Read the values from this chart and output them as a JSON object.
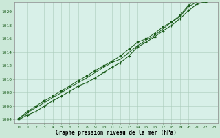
{
  "title": "Graphe pression niveau de la mer (hPa)",
  "background_color": "#cbe8d8",
  "plot_bg_color": "#d8f0e8",
  "grid_color": "#aaccbb",
  "line_color": "#1a5c1a",
  "xlim": [
    -0.5,
    23.5
  ],
  "ylim": [
    1003.5,
    1021.5
  ],
  "yticks": [
    1004,
    1006,
    1008,
    1010,
    1012,
    1014,
    1016,
    1018,
    1020
  ],
  "xticks": [
    0,
    1,
    2,
    3,
    4,
    5,
    6,
    7,
    8,
    9,
    10,
    11,
    12,
    13,
    14,
    15,
    16,
    17,
    18,
    19,
    20,
    21,
    22,
    23
  ],
  "series1_x": [
    0,
    1,
    2,
    3,
    4,
    5,
    6,
    7,
    8,
    9,
    10,
    11,
    12,
    13,
    14,
    15,
    16,
    17,
    18,
    19,
    20,
    21,
    22,
    23
  ],
  "series1_y": [
    1004.0,
    1004.7,
    1005.2,
    1006.0,
    1006.8,
    1007.5,
    1008.2,
    1009.0,
    1009.5,
    1010.2,
    1011.0,
    1011.8,
    1012.5,
    1013.5,
    1014.8,
    1015.5,
    1016.3,
    1017.2,
    1018.0,
    1019.0,
    1020.2,
    1021.2,
    1021.5,
    1021.8
  ],
  "series2_x": [
    0,
    1,
    2,
    3,
    4,
    5,
    6,
    7,
    8,
    9,
    10,
    11,
    12,
    13,
    14,
    15,
    16,
    17,
    18,
    19,
    20,
    21,
    22,
    23
  ],
  "series2_y": [
    1004.1,
    1005.0,
    1005.8,
    1006.5,
    1007.3,
    1008.0,
    1008.8,
    1009.5,
    1010.2,
    1011.0,
    1011.8,
    1012.5,
    1013.0,
    1014.0,
    1015.0,
    1015.8,
    1016.5,
    1017.5,
    1018.5,
    1019.3,
    1020.8,
    1021.5,
    1021.8,
    1022.0
  ],
  "series3_x": [
    0,
    1,
    2,
    3,
    4,
    5,
    6,
    7,
    8,
    9,
    10,
    11,
    12,
    13,
    14,
    15,
    16,
    17,
    18,
    19,
    20,
    21,
    22,
    23
  ],
  "series3_y": [
    1004.2,
    1005.2,
    1006.0,
    1006.8,
    1007.5,
    1008.3,
    1009.0,
    1009.8,
    1010.5,
    1011.3,
    1012.0,
    1012.7,
    1013.5,
    1014.5,
    1015.5,
    1016.0,
    1016.8,
    1017.8,
    1018.5,
    1019.5,
    1021.0,
    1022.0,
    1022.2,
    1022.5
  ]
}
